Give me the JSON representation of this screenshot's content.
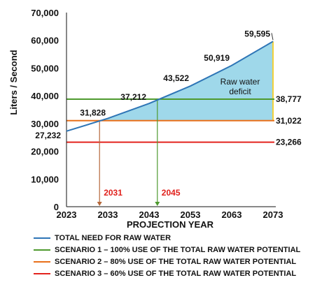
{
  "chart_data": {
    "type": "line",
    "xlabel": "PROJECTION YEAR",
    "ylabel": "Liters / Second",
    "xlim": [
      2023,
      2073
    ],
    "ylim": [
      0,
      70000
    ],
    "x_ticks": [
      "2023",
      "2033",
      "2043",
      "2053",
      "2063",
      "2073"
    ],
    "y_ticks": [
      {
        "value": 0,
        "label": "0"
      },
      {
        "value": 10000,
        "label": "10,000"
      },
      {
        "value": 20000,
        "label": "20,000"
      },
      {
        "value": 30000,
        "label": "30,000"
      },
      {
        "value": 40000,
        "label": "40,000"
      },
      {
        "value": 50000,
        "label": "50,000"
      },
      {
        "value": 60000,
        "label": "60,000"
      },
      {
        "value": 70000,
        "label": "70,000"
      }
    ],
    "series": [
      {
        "name": "TOTAL NEED FOR RAW WATER",
        "color": "#2e75b6",
        "x": [
          2023,
          2033,
          2043,
          2053,
          2063,
          2073
        ],
        "y": [
          27232,
          31828,
          37212,
          43522,
          50919,
          59595
        ],
        "labels": [
          "27,232",
          "31,828",
          "37,212",
          "43,522",
          "50,919",
          "59,595"
        ]
      },
      {
        "name": "SCENARIO 1 – 100% USE OF THE TOTAL RAW WATER POTENTIAL",
        "color": "#4e9a2e",
        "y_constant": 38777,
        "label": "38,777"
      },
      {
        "name": "SCENARIO 2 – 80% USE OF THE TOTAL RAW WATER POTENTIAL",
        "color": "#e8701a",
        "y_constant": 31022,
        "label": "31,022"
      },
      {
        "name": "SCENARIO 3 – 60% USE OF THE TOTAL RAW WATER POTENTIAL",
        "color": "#e3231d",
        "y_constant": 23266,
        "label": "23,266"
      }
    ],
    "annotations": [
      {
        "text": "Raw water deficit",
        "lines": [
          "Raw water",
          "deficit"
        ]
      },
      {
        "text": "2031",
        "x": 2031,
        "color": "#e3231d",
        "arrow_color": "#b5683a"
      },
      {
        "text": "2045",
        "x": 2045,
        "color": "#e3231d",
        "arrow_color": "#4e9a2e"
      }
    ],
    "fill_color": "#9fd8ea",
    "deficit_edge_color": "#f2d13a",
    "grid": false,
    "legend_position": "bottom"
  }
}
